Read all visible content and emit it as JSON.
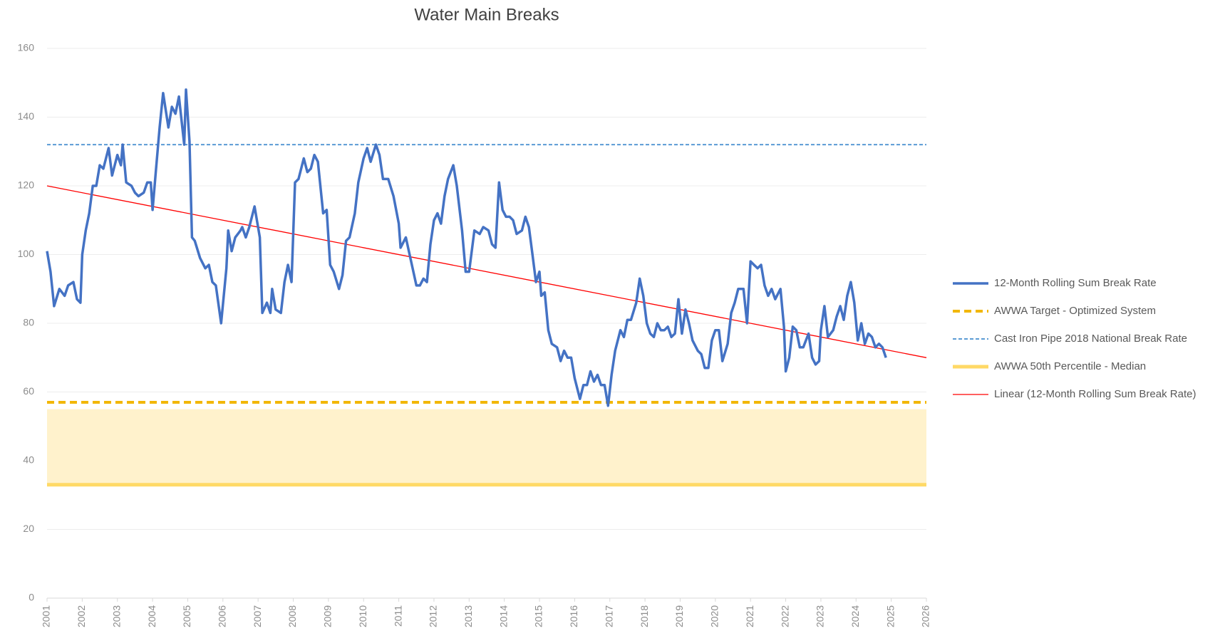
{
  "chart_data": {
    "type": "line",
    "title": "Water Main Breaks",
    "xlim": [
      2001,
      2026
    ],
    "xticks": [
      2001,
      2002,
      2003,
      2004,
      2005,
      2006,
      2007,
      2008,
      2009,
      2010,
      2011,
      2012,
      2013,
      2014,
      2015,
      2016,
      2017,
      2018,
      2019,
      2020,
      2021,
      2022,
      2023,
      2024,
      2025,
      2026
    ],
    "ylim": [
      0,
      160
    ],
    "yticks": [
      0,
      20,
      40,
      60,
      80,
      100,
      120,
      140,
      160
    ],
    "grid": true,
    "legend": "right",
    "shaded_range": [
      33,
      55
    ],
    "shaded_color": "#fff2cc",
    "series": [
      {
        "name": "12-Month Rolling Sum Break Rate",
        "color": "#4472c4",
        "line_style": "solid",
        "x": [
          2001.0,
          2001.1,
          2001.2,
          2001.35,
          2001.5,
          2001.6,
          2001.75,
          2001.85,
          2001.95,
          2002.0,
          2002.1,
          2002.2,
          2002.3,
          2002.4,
          2002.5,
          2002.6,
          2002.75,
          2002.85,
          2003.0,
          2003.1,
          2003.15,
          2003.25,
          2003.4,
          2003.5,
          2003.6,
          2003.75,
          2003.85,
          2003.95,
          2004.0,
          2004.1,
          2004.2,
          2004.3,
          2004.45,
          2004.55,
          2004.65,
          2004.75,
          2004.9,
          2004.95,
          2005.05,
          2005.12,
          2005.2,
          2005.35,
          2005.5,
          2005.6,
          2005.7,
          2005.8,
          2005.95,
          2006.1,
          2006.15,
          2006.25,
          2006.35,
          2006.5,
          2006.55,
          2006.65,
          2006.75,
          2006.9,
          2007.05,
          2007.12,
          2007.25,
          2007.35,
          2007.4,
          2007.5,
          2007.65,
          2007.75,
          2007.85,
          2007.95,
          2008.05,
          2008.15,
          2008.3,
          2008.4,
          2008.5,
          2008.6,
          2008.7,
          2008.85,
          2008.95,
          2009.05,
          2009.15,
          2009.3,
          2009.4,
          2009.5,
          2009.6,
          2009.75,
          2009.85,
          2010.0,
          2010.1,
          2010.2,
          2010.35,
          2010.45,
          2010.55,
          2010.7,
          2010.85,
          2011.0,
          2011.05,
          2011.2,
          2011.35,
          2011.5,
          2011.6,
          2011.7,
          2011.8,
          2011.9,
          2012.0,
          2012.1,
          2012.2,
          2012.3,
          2012.4,
          2012.55,
          2012.65,
          2012.8,
          2012.9,
          2013.0,
          2013.15,
          2013.3,
          2013.4,
          2013.55,
          2013.65,
          2013.75,
          2013.85,
          2013.95,
          2014.05,
          2014.15,
          2014.25,
          2014.35,
          2014.5,
          2014.6,
          2014.7,
          2014.8,
          2014.9,
          2015.0,
          2015.05,
          2015.15,
          2015.25,
          2015.35,
          2015.5,
          2015.6,
          2015.7,
          2015.8,
          2015.9,
          2016.0,
          2016.15,
          2016.25,
          2016.35,
          2016.45,
          2016.55,
          2016.65,
          2016.75,
          2016.85,
          2016.95,
          2017.05,
          2017.15,
          2017.3,
          2017.4,
          2017.5,
          2017.6,
          2017.75,
          2017.85,
          2017.95,
          2018.05,
          2018.15,
          2018.25,
          2018.35,
          2018.45,
          2018.55,
          2018.65,
          2018.75,
          2018.85,
          2018.95,
          2019.05,
          2019.15,
          2019.25,
          2019.35,
          2019.5,
          2019.6,
          2019.7,
          2019.8,
          2019.9,
          2020.0,
          2020.1,
          2020.2,
          2020.35,
          2020.45,
          2020.55,
          2020.65,
          2020.8,
          2020.9,
          2021.0,
          2021.1,
          2021.2,
          2021.3,
          2021.4,
          2021.5,
          2021.6,
          2021.7,
          2021.85,
          2021.95,
          2022.0,
          2022.1,
          2022.2,
          2022.3,
          2022.4,
          2022.5,
          2022.65,
          2022.75,
          2022.85,
          2022.95,
          2023.0,
          2023.1,
          2023.2,
          2023.35,
          2023.45,
          2023.55,
          2023.65,
          2023.75,
          2023.85,
          2023.95,
          2024.05,
          2024.15,
          2024.25,
          2024.35,
          2024.45,
          2024.55,
          2024.65,
          2024.75,
          2024.85
        ],
        "values": [
          101,
          95,
          85,
          90,
          88,
          91,
          92,
          87,
          86,
          100,
          107,
          112,
          120,
          120,
          126,
          125,
          131,
          123,
          129,
          126,
          132,
          121,
          120,
          118,
          117,
          118,
          121,
          121,
          113,
          125,
          137,
          147,
          137,
          143,
          141,
          146,
          132,
          148,
          133,
          105,
          104,
          99,
          96,
          97,
          92,
          91,
          80,
          96,
          107,
          101,
          105,
          107,
          108,
          105,
          108,
          114,
          105,
          83,
          86,
          83,
          90,
          84,
          83,
          92,
          97,
          92,
          121,
          122,
          128,
          124,
          125,
          129,
          127,
          112,
          113,
          97,
          95,
          90,
          94,
          104,
          105,
          112,
          121,
          128,
          131,
          127,
          132,
          129,
          122,
          122,
          117,
          109,
          102,
          105,
          98,
          91,
          91,
          93,
          92,
          103,
          110,
          112,
          109,
          117,
          122,
          126,
          120,
          107,
          95,
          95,
          107,
          106,
          108,
          107,
          103,
          102,
          121,
          113,
          111,
          111,
          110,
          106,
          107,
          111,
          108,
          100,
          92,
          95,
          88,
          89,
          78,
          74,
          73,
          69,
          72,
          70,
          70,
          64,
          58,
          62,
          62,
          66,
          63,
          65,
          62,
          62,
          56,
          65,
          72,
          78,
          76,
          81,
          81,
          86,
          93,
          88,
          80,
          77,
          76,
          80,
          78,
          78,
          79,
          76,
          77,
          87,
          77,
          84,
          80,
          75,
          72,
          71,
          67,
          67,
          75,
          78,
          78,
          69,
          74,
          83,
          86,
          90,
          90,
          80,
          98,
          97,
          96,
          97,
          91,
          88,
          90,
          87,
          90,
          79,
          66,
          70,
          79,
          78,
          73,
          73,
          77,
          70,
          68,
          69,
          78,
          85,
          76,
          78,
          82,
          85,
          81,
          88,
          92,
          86,
          75,
          80,
          74,
          77,
          76,
          73,
          74,
          73,
          70
        ]
      },
      {
        "name": "AWWA Target - Optimized System",
        "color": "#f2b705",
        "line_style": "dashed",
        "x": [
          2001,
          2026
        ],
        "values": [
          57,
          57
        ]
      },
      {
        "name": "Cast Iron Pipe 2018 National Break Rate",
        "color": "#5b9bd5",
        "line_style": "dotted",
        "x": [
          2001,
          2026
        ],
        "values": [
          132,
          132
        ]
      },
      {
        "name": "AWWA 50th Percentile - Median",
        "color": "#ffd966",
        "line_style": "solid",
        "x": [
          2001,
          2026
        ],
        "values": [
          33,
          33
        ]
      },
      {
        "name": "Linear (12-Month Rolling Sum Break Rate)",
        "color": "#ff0000",
        "line_style": "thin",
        "x": [
          2001,
          2026
        ],
        "values": [
          120,
          70
        ]
      }
    ]
  }
}
